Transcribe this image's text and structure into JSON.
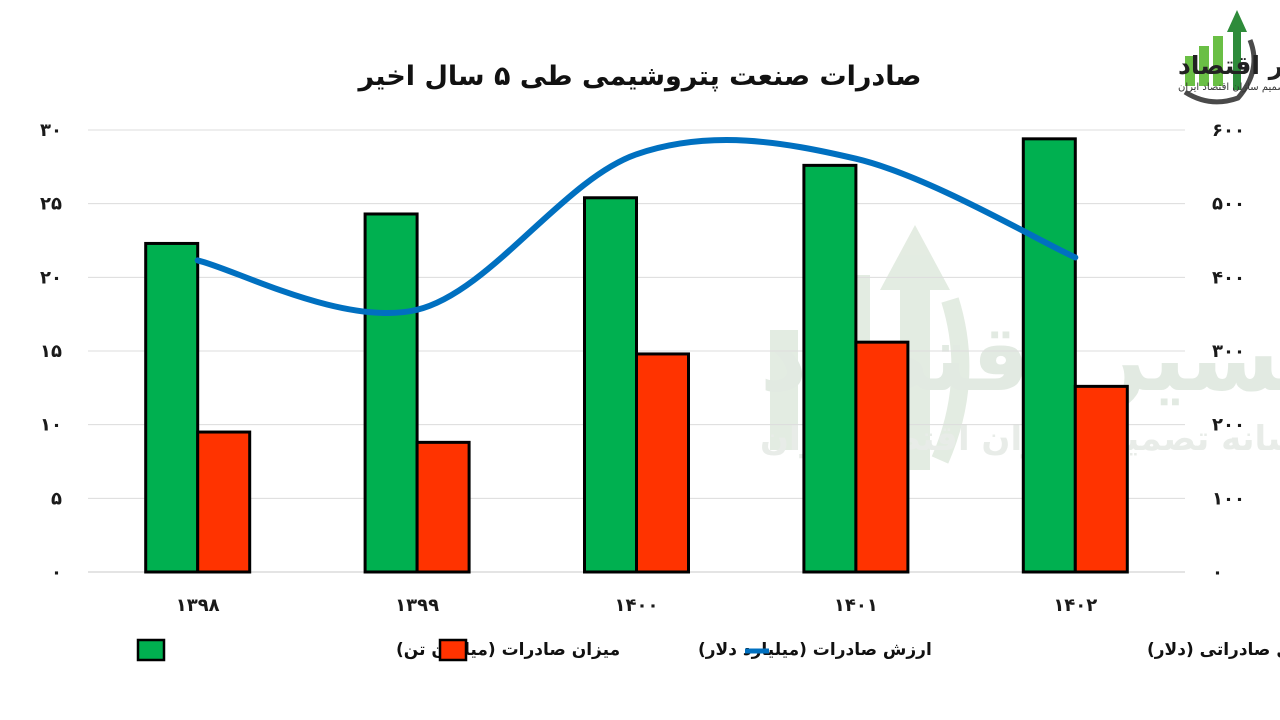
{
  "chart_data": {
    "type": "bar",
    "title": "صادرات صنعت پتروشیمی طی ۵ سال اخیر",
    "categories": [
      "۱۳۹۸",
      "۱۳۹۹",
      "۱۴۰۰",
      "۱۴۰۱",
      "۱۴۰۲"
    ],
    "series": [
      {
        "name": "میزان صادرات (میلیون تن)",
        "type": "bar",
        "axis": "left",
        "color": "#00b050",
        "values": [
          22.3,
          24.3,
          25.4,
          27.6,
          29.4
        ]
      },
      {
        "name": "ارزش صادرات (میلیارد دلار)",
        "type": "bar",
        "axis": "left",
        "color": "#ff3300",
        "values": [
          9.5,
          8.8,
          14.8,
          15.6,
          12.6
        ]
      },
      {
        "name": "متوسط قیمت هر تن محصول صادراتی (دلار)",
        "type": "line",
        "axis": "right",
        "color": "#0070c0",
        "values": [
          423,
          356,
          567,
          561,
          427
        ]
      }
    ],
    "y_left": {
      "min": 0,
      "max": 30,
      "step": 5,
      "tick_labels": [
        "۰",
        "۵",
        "۱۰",
        "۱۵",
        "۲۰",
        "۲۵",
        "۳۰"
      ]
    },
    "y_right": {
      "min": 0,
      "max": 600,
      "step": 100,
      "tick_labels": [
        "۰",
        "۱۰۰",
        "۲۰۰",
        "۳۰۰",
        "۴۰۰",
        "۵۰۰",
        "۶۰۰"
      ]
    },
    "grid": true,
    "legend_position": "bottom"
  },
  "logo": {
    "name": "مسیر اقتصاد",
    "tagline": "رسانه تصمیم سازان اقتصاد ایران"
  }
}
